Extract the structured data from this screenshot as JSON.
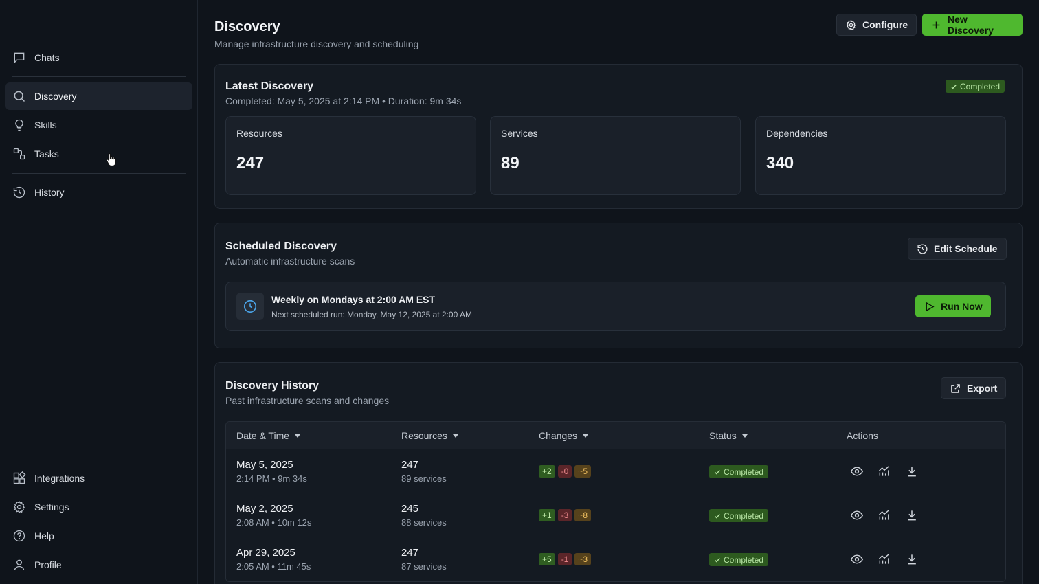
{
  "sidebar": {
    "top_items": [
      {
        "label": "Chats",
        "icon": "chat-icon"
      },
      {
        "label": "Discovery",
        "icon": "search-icon",
        "active": true
      },
      {
        "label": "Skills",
        "icon": "lightbulb-icon"
      },
      {
        "label": "Tasks",
        "icon": "tasks-icon"
      },
      {
        "label": "History",
        "icon": "history-icon"
      }
    ],
    "bottom_items": [
      {
        "label": "Integrations",
        "icon": "integrations-icon"
      },
      {
        "label": "Settings",
        "icon": "gear-icon"
      },
      {
        "label": "Help",
        "icon": "help-icon"
      },
      {
        "label": "Profile",
        "icon": "user-icon"
      }
    ]
  },
  "header": {
    "title": "Discovery",
    "subtitle": "Manage infrastructure discovery and scheduling",
    "configure_label": "Configure",
    "new_discovery_label": "New Discovery"
  },
  "latest": {
    "title": "Latest Discovery",
    "meta": "Completed: May 5, 2025 at 2:14 PM • Duration: 9m 34s",
    "status": "Completed",
    "stats": [
      {
        "label": "Resources",
        "value": "247"
      },
      {
        "label": "Services",
        "value": "89"
      },
      {
        "label": "Dependencies",
        "value": "340"
      }
    ]
  },
  "scheduled": {
    "title": "Scheduled Discovery",
    "subtitle": "Automatic infrastructure scans",
    "edit_label": "Edit Schedule",
    "schedule_text": "Weekly on Mondays at 2:00 AM EST",
    "next_run": "Next scheduled run: Monday, May 12, 2025 at 2:00 AM",
    "run_now_label": "Run Now"
  },
  "history": {
    "title": "Discovery History",
    "subtitle": "Past infrastructure scans and changes",
    "export_label": "Export",
    "columns": [
      "Date & Time",
      "Resources",
      "Changes",
      "Status",
      "Actions"
    ],
    "rows": [
      {
        "date": "May 5, 2025",
        "time": "2:14 PM • 9m 34s",
        "resources": "247",
        "services": "89 services",
        "added": "+2",
        "removed": "-0",
        "modified": "~5",
        "status": "Completed"
      },
      {
        "date": "May 2, 2025",
        "time": "2:08 AM • 10m 12s",
        "resources": "245",
        "services": "88 services",
        "added": "+1",
        "removed": "-3",
        "modified": "~8",
        "status": "Completed"
      },
      {
        "date": "Apr 29, 2025",
        "time": "2:05 AM • 11m 45s",
        "resources": "247",
        "services": "87 services",
        "added": "+5",
        "removed": "-1",
        "modified": "~3",
        "status": "Completed"
      }
    ]
  },
  "colors": {
    "accent_green": "#4fb82f",
    "background": "#0f141b",
    "card": "#141a22",
    "clock_blue": "#4aa3e6"
  }
}
